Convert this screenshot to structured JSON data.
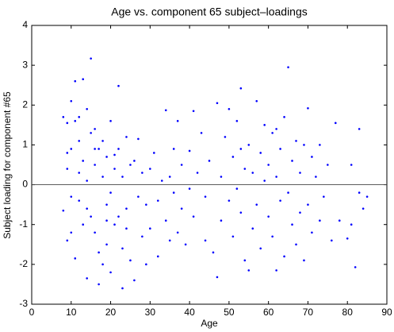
{
  "chart_data": {
    "type": "scatter",
    "title": "Age vs. component 65 subject–loadings",
    "x_label": "Age",
    "y_label": "Subject loading for component #65",
    "color": "#0000ff",
    "xlim": [
      0,
      90
    ],
    "xticks": [
      0,
      10,
      20,
      30,
      40,
      50,
      60,
      70,
      80,
      90
    ],
    "ylim": [
      -3,
      4
    ],
    "yticks": [
      -3,
      -2,
      -1,
      0,
      1,
      2,
      3,
      4
    ],
    "reference_line": 0,
    "x": [
      8,
      8,
      9,
      9,
      9,
      10,
      10,
      10,
      11,
      11,
      11,
      12,
      12,
      12,
      13,
      13,
      13,
      14,
      14,
      14,
      15,
      15,
      15,
      16,
      16,
      16,
      17,
      17,
      17,
      18,
      18,
      18,
      19,
      19,
      19,
      20,
      20,
      20,
      21,
      21,
      22,
      22,
      22,
      23,
      23,
      23,
      24,
      24,
      25,
      25,
      26,
      26,
      27,
      27,
      28,
      28,
      29,
      29,
      30,
      30,
      31,
      32,
      32,
      33,
      34,
      34,
      35,
      35,
      36,
      36,
      37,
      37,
      38,
      38,
      39,
      40,
      40,
      41,
      41,
      42,
      43,
      44,
      44,
      45,
      46,
      47,
      47,
      48,
      48,
      49,
      50,
      50,
      51,
      51,
      52,
      52,
      53,
      53,
      54,
      54,
      55,
      55,
      56,
      56,
      57,
      57,
      58,
      58,
      59,
      59,
      60,
      60,
      61,
      61,
      62,
      62,
      63,
      63,
      64,
      64,
      65,
      65,
      66,
      66,
      67,
      67,
      68,
      68,
      69,
      69,
      70,
      70,
      71,
      71,
      72,
      73,
      73,
      74,
      75,
      76,
      77,
      78,
      80,
      81,
      81,
      82,
      83,
      83,
      84,
      85,
      9,
      10,
      12,
      14,
      16,
      19,
      21,
      24,
      53,
      62
    ],
    "values": [
      1.7,
      -0.65,
      1.55,
      0.4,
      -1.4,
      2.1,
      0.9,
      -0.3,
      1.6,
      -1.85,
      2.6,
      1.1,
      -0.4,
      0.3,
      2.65,
      -1.0,
      0.6,
      1.9,
      -2.35,
      0.1,
      3.17,
      -0.8,
      1.3,
      0.5,
      -1.2,
      1.4,
      -2.5,
      0.9,
      -1.7,
      0.2,
      -2.0,
      1.1,
      -0.5,
      0.7,
      -1.5,
      1.6,
      -0.2,
      -2.2,
      0.4,
      -1.0,
      2.48,
      -0.8,
      0.9,
      -2.6,
      0.2,
      -1.6,
      1.2,
      -0.6,
      0.5,
      -1.9,
      -2.4,
      0.6,
      -0.3,
      1.15,
      -1.3,
      0.3,
      -2.0,
      -0.5,
      0.4,
      -1.1,
      0.8,
      -0.4,
      -1.8,
      0.1,
      1.87,
      -0.9,
      0.2,
      -1.4,
      0.9,
      -0.2,
      1.6,
      -1.2,
      0.5,
      -0.6,
      -1.5,
      0.85,
      -0.1,
      1.85,
      -0.8,
      0.3,
      1.3,
      -0.3,
      -1.4,
      0.6,
      -1.7,
      2.05,
      -2.32,
      0.2,
      -0.9,
      1.2,
      -0.4,
      1.9,
      0.7,
      -1.3,
      -0.1,
      1.6,
      2.42,
      -0.7,
      0.4,
      -1.9,
      -2.15,
      1.0,
      0.3,
      -1.1,
      2.1,
      -0.5,
      0.8,
      -1.6,
      0.1,
      1.5,
      -0.8,
      0.5,
      -1.3,
      1.3,
      -2.15,
      0.2,
      0.9,
      -0.4,
      -1.8,
      1.7,
      2.95,
      -0.2,
      0.6,
      -1.0,
      1.1,
      -1.5,
      0.3,
      -0.7,
      1.0,
      -1.9,
      1.92,
      -0.5,
      0.7,
      -1.2,
      0.2,
      1.0,
      -0.9,
      -0.3,
      0.5,
      -1.4,
      1.55,
      -0.9,
      -1.35,
      0.5,
      -1.0,
      -2.07,
      1.4,
      -0.2,
      -0.6,
      -0.3,
      0.8,
      -1.2,
      1.7,
      -0.6,
      0.9,
      -0.9,
      0.75,
      -1.1,
      0.9,
      1.4
    ]
  }
}
